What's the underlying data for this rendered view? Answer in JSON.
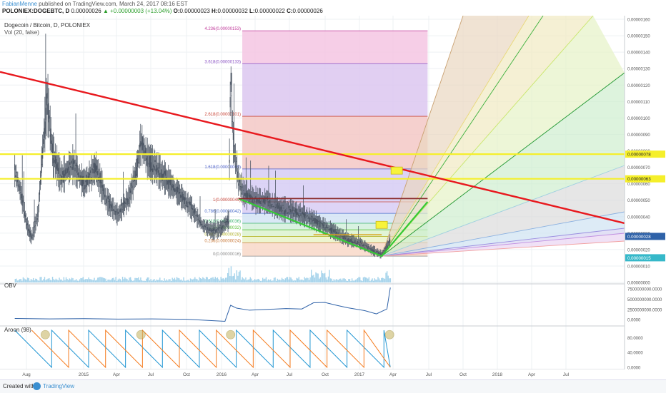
{
  "header": {
    "author": "FabianMenne",
    "published_text": "published on TradingView.com, March 24, 2017 08:16 EST",
    "symbol": "POLONIEX:DOGEBTC, D",
    "price": "0.00000026",
    "change_arrow": "▲",
    "change": "+0.00000003 (+13.04%)",
    "o_label": "O:",
    "o_value": "0.00000023",
    "h_label": "H:",
    "h_value": "0.00000032",
    "l_label": "L:",
    "l_value": "0.00000022",
    "c_label": "C:",
    "c_value": "0.00000026"
  },
  "footer": {
    "created": "Created with",
    "brand": "TradingView"
  },
  "colors": {
    "trendline": "#e8191e",
    "green_lines": "#35c935",
    "yellow_lines": "#f5ef2a",
    "candle": "#4b5563",
    "obv": "#2f62a8",
    "aroon_up": "#2196d3",
    "aroon_down": "#f57c1f"
  },
  "chart_data": {
    "type": "line",
    "title": "Dogecoin / Bitcoin, D, POLONIEX",
    "indicator_label": "Vol (20, false)",
    "price_axis": {
      "ticks": [
        "0.00000160",
        "0.00000150",
        "0.00000140",
        "0.00000130",
        "0.00000120",
        "0.00000110",
        "0.00000100",
        "0.00000090",
        "0.00000080",
        "0.00000070",
        "0.00000060",
        "0.00000050",
        "0.00000040",
        "0.00000030",
        "0.00000020",
        "0.00000010",
        "0.00000000"
      ],
      "ylim": [
        0,
        1.6e-06
      ],
      "badges": [
        {
          "value": "0.00000078",
          "color": "#f5ef2a"
        },
        {
          "value": "0.00000063",
          "color": "#f5ef2a"
        },
        {
          "value": "0.00000028",
          "color": "#2f62a8"
        },
        {
          "value": "0.00000015",
          "color": "#36b8c9"
        }
      ]
    },
    "time_axis": [
      "Aug",
      "2015",
      "Apr",
      "Jul",
      "Oct",
      "2016",
      "Apr",
      "Jul",
      "Oct",
      "2017",
      "Apr",
      "Jul",
      "Oct",
      "2018",
      "Apr",
      "Jul"
    ],
    "fibonacci": [
      {
        "label": "4.236(0.00000153)",
        "value": 1.53e-06
      },
      {
        "label": "3.618(0.00000133)",
        "value": 1.33e-06
      },
      {
        "label": "2.618(0.00000101)",
        "value": 1.01e-06
      },
      {
        "label": "1.618(0.00000069)",
        "value": 6.9e-07
      },
      {
        "label": "1(0.00000049)",
        "value": 4.9e-07
      },
      {
        "label": "0.786(0.00000042)",
        "value": 4.2e-07
      },
      {
        "label": "0.618(0.00000036)",
        "value": 3.6e-07
      },
      {
        "label": "0.5(0.00000032)",
        "value": 3.2e-07
      },
      {
        "label": "0.382(0.00000028)",
        "value": 2.8e-07
      },
      {
        "label": "0.236(0.00000024)",
        "value": 2.4e-07
      },
      {
        "label": "0(0.00000016)",
        "value": 1.6e-07
      }
    ],
    "horizontal_lines": [
      7.8e-07,
      6.3e-07
    ],
    "price_series": [
      {
        "x": "2014-07-01",
        "y": 6.8e-07
      },
      {
        "x": "2014-07-20",
        "y": 5.2e-07
      },
      {
        "x": "2014-08-01",
        "y": 3.6e-07
      },
      {
        "x": "2014-08-15",
        "y": 2.7e-07
      },
      {
        "x": "2014-09-01",
        "y": 4.2e-07
      },
      {
        "x": "2014-09-10",
        "y": 7.2e-07
      },
      {
        "x": "2014-09-25",
        "y": 1.12e-06
      },
      {
        "x": "2014-10-10",
        "y": 7.8e-07
      },
      {
        "x": "2014-11-01",
        "y": 6.4e-07
      },
      {
        "x": "2014-12-01",
        "y": 7.2e-07
      },
      {
        "x": "2015-01-01",
        "y": 6e-07
      },
      {
        "x": "2015-02-01",
        "y": 7e-07
      },
      {
        "x": "2015-03-01",
        "y": 5e-07
      },
      {
        "x": "2015-04-01",
        "y": 4.1e-07
      },
      {
        "x": "2015-05-01",
        "y": 5.2e-07
      },
      {
        "x": "2015-05-20",
        "y": 6.8e-07
      },
      {
        "x": "2015-06-01",
        "y": 8.5e-07
      },
      {
        "x": "2015-06-20",
        "y": 7.4e-07
      },
      {
        "x": "2015-07-10",
        "y": 7e-07
      },
      {
        "x": "2015-08-10",
        "y": 6.2e-07
      },
      {
        "x": "2015-09-10",
        "y": 5.4e-07
      },
      {
        "x": "2015-10-10",
        "y": 4.6e-07
      },
      {
        "x": "2015-11-10",
        "y": 3.5e-07
      },
      {
        "x": "2015-12-10",
        "y": 3.1e-07
      },
      {
        "x": "2016-01-01",
        "y": 3.3e-07
      },
      {
        "x": "2016-01-20",
        "y": 3.8e-07
      },
      {
        "x": "2016-01-25",
        "y": 1.3e-06
      },
      {
        "x": "2016-02-01",
        "y": 8.5e-07
      },
      {
        "x": "2016-02-15",
        "y": 6.2e-07
      },
      {
        "x": "2016-03-01",
        "y": 5.4e-07
      },
      {
        "x": "2016-04-01",
        "y": 5e-07
      },
      {
        "x": "2016-05-01",
        "y": 4.9e-07
      },
      {
        "x": "2016-06-01",
        "y": 4.5e-07
      },
      {
        "x": "2016-07-01",
        "y": 4.4e-07
      },
      {
        "x": "2016-08-01",
        "y": 4.1e-07
      },
      {
        "x": "2016-09-01",
        "y": 3.8e-07
      },
      {
        "x": "2016-10-01",
        "y": 3.4e-07
      },
      {
        "x": "2016-11-01",
        "y": 3e-07
      },
      {
        "x": "2016-12-01",
        "y": 2.6e-07
      },
      {
        "x": "2017-01-01",
        "y": 2.4e-07
      },
      {
        "x": "2017-02-01",
        "y": 2e-07
      },
      {
        "x": "2017-03-01",
        "y": 1.7e-07
      },
      {
        "x": "2017-03-15",
        "y": 2.2e-07
      },
      {
        "x": "2017-03-24",
        "y": 2.6e-07
      }
    ],
    "obv_panel": {
      "label": "OBV",
      "ticks": [
        "7500000000.0000",
        "5000000000.0000",
        "2500000000.0000",
        "0.0000"
      ],
      "ylim": [
        -1000000000,
        8000000000
      ],
      "series": [
        {
          "x": "2014-07-01",
          "y": 300000000
        },
        {
          "x": "2014-10-01",
          "y": 200000000
        },
        {
          "x": "2015-01-01",
          "y": 250000000
        },
        {
          "x": "2015-04-01",
          "y": 150000000
        },
        {
          "x": "2015-07-01",
          "y": 200000000
        },
        {
          "x": "2015-10-01",
          "y": 100000000
        },
        {
          "x": "2015-12-01",
          "y": -200000000
        },
        {
          "x": "2016-01-10",
          "y": -400000000
        },
        {
          "x": "2016-01-25",
          "y": 3500000000
        },
        {
          "x": "2016-02-10",
          "y": 2800000000
        },
        {
          "x": "2016-03-15",
          "y": 2300000000
        },
        {
          "x": "2016-05-01",
          "y": 2500000000
        },
        {
          "x": "2016-06-20",
          "y": 2700000000
        },
        {
          "x": "2016-08-01",
          "y": 2600000000
        },
        {
          "x": "2016-09-01",
          "y": 4100000000
        },
        {
          "x": "2016-10-01",
          "y": 4200000000
        },
        {
          "x": "2016-11-01",
          "y": 3500000000
        },
        {
          "x": "2016-12-01",
          "y": 2900000000
        },
        {
          "x": "2017-01-15",
          "y": 2200000000
        },
        {
          "x": "2017-02-15",
          "y": 1400000000
        },
        {
          "x": "2017-03-15",
          "y": 2600000000
        },
        {
          "x": "2017-03-24",
          "y": 7800000000
        }
      ]
    },
    "aroon_panel": {
      "label": "Aroon (98)",
      "ticks": [
        "80.0000",
        "40.0000",
        "0.0000"
      ],
      "ylim": [
        0,
        100
      ],
      "highlight_dates": [
        "2014-09-20",
        "2015-06-01",
        "2016-01-25",
        "2017-03-22"
      ]
    }
  }
}
